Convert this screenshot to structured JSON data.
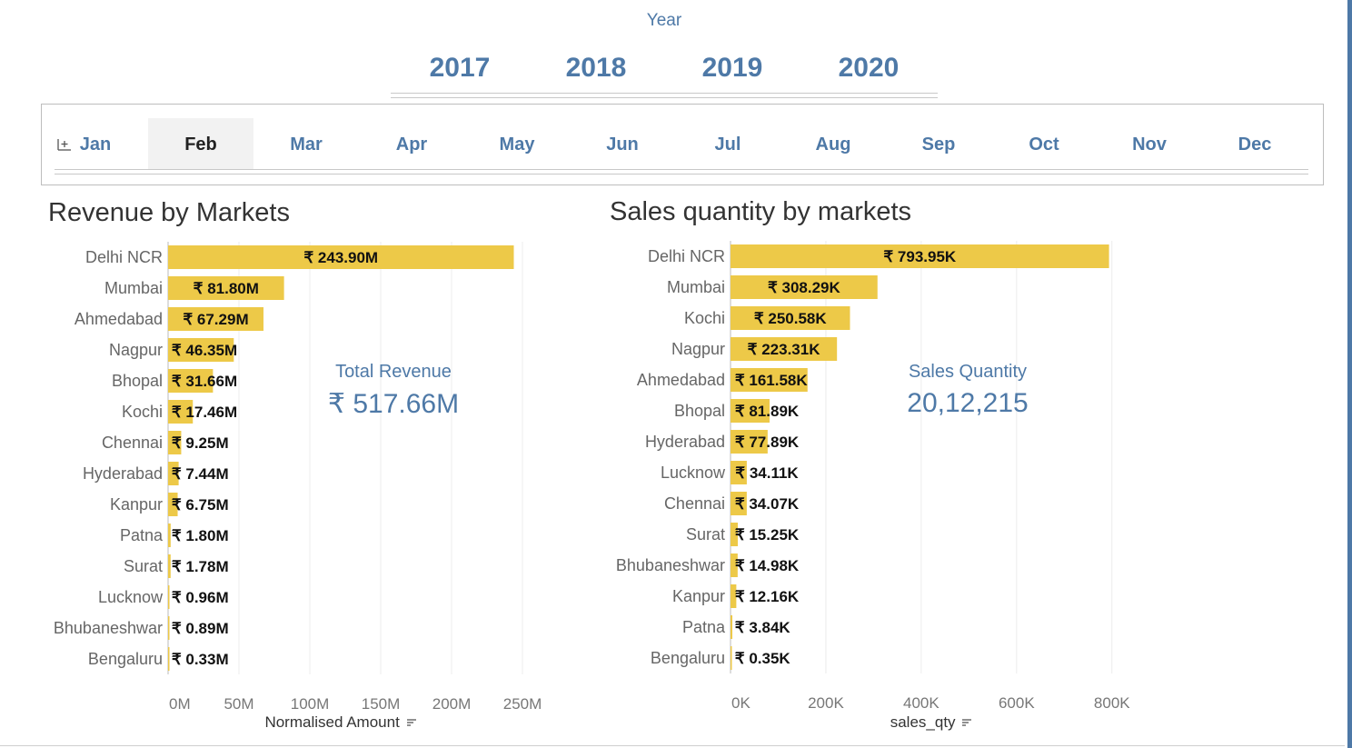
{
  "year_filter": {
    "label": "Year",
    "years": [
      "2017",
      "2018",
      "2019",
      "2020"
    ]
  },
  "month_filter": {
    "months": [
      "Jan",
      "Feb",
      "Mar",
      "Apr",
      "May",
      "Jun",
      "Jul",
      "Aug",
      "Sep",
      "Oct",
      "Nov",
      "Dec"
    ],
    "selected": "Feb",
    "expand_icon": "plus-box-icon"
  },
  "revenue_panel": {
    "title": "Revenue by Markets",
    "kpi_label": "Total Revenue",
    "kpi_value": "₹ 517.66M",
    "axis_title": "Normalised Amount",
    "sort_icon": "sort-descending-icon"
  },
  "sales_panel": {
    "title": "Sales quantity by markets",
    "kpi_label": "Sales Quantity",
    "kpi_value": "20,12,215",
    "axis_title": "sales_qty",
    "sort_icon": "sort-descending-icon"
  },
  "chart_data": [
    {
      "type": "bar",
      "orientation": "horizontal",
      "title": "Revenue by Markets",
      "xlabel": "Normalised Amount",
      "xlim": [
        0,
        250000000
      ],
      "grid": true,
      "bar_color": "#edc948",
      "tick_labels": [
        "0M",
        "50M",
        "100M",
        "150M",
        "200M",
        "250M"
      ],
      "tick_values": [
        0,
        50000000,
        100000000,
        150000000,
        200000000,
        250000000
      ],
      "categories": [
        "Delhi NCR",
        "Mumbai",
        "Ahmedabad",
        "Nagpur",
        "Bhopal",
        "Kochi",
        "Chennai",
        "Hyderabad",
        "Kanpur",
        "Patna",
        "Surat",
        "Lucknow",
        "Bhubaneshwar",
        "Bengaluru"
      ],
      "values": [
        243900000,
        81800000,
        67290000,
        46350000,
        31660000,
        17460000,
        9250000,
        7440000,
        6750000,
        1800000,
        1780000,
        960000,
        890000,
        330000
      ],
      "labels": [
        "₹ 243.90M",
        "₹ 81.80M",
        "₹ 67.29M",
        "₹ 46.35M",
        "₹ 31.66M",
        "₹ 17.46M",
        "₹ 9.25M",
        "₹ 7.44M",
        "₹ 6.75M",
        "₹ 1.80M",
        "₹ 1.78M",
        "₹ 0.96M",
        "₹ 0.89M",
        "₹ 0.33M"
      ]
    },
    {
      "type": "bar",
      "orientation": "horizontal",
      "title": "Sales quantity by markets",
      "xlabel": "sales_qty",
      "xlim": [
        0,
        850000
      ],
      "grid": true,
      "bar_color": "#edc948",
      "tick_labels": [
        "0K",
        "200K",
        "400K",
        "600K",
        "800K"
      ],
      "tick_values": [
        0,
        200000,
        400000,
        600000,
        800000
      ],
      "categories": [
        "Delhi NCR",
        "Mumbai",
        "Kochi",
        "Nagpur",
        "Ahmedabad",
        "Bhopal",
        "Hyderabad",
        "Lucknow",
        "Chennai",
        "Surat",
        "Bhubaneshwar",
        "Kanpur",
        "Patna",
        "Bengaluru"
      ],
      "values": [
        793950,
        308290,
        250580,
        223310,
        161580,
        81890,
        77890,
        34110,
        34070,
        15250,
        14980,
        12160,
        3840,
        350
      ],
      "labels": [
        "₹ 793.95K",
        "₹ 308.29K",
        "₹ 250.58K",
        "₹ 223.31K",
        "₹ 161.58K",
        "₹ 81.89K",
        "₹ 77.89K",
        "₹ 34.11K",
        "₹ 34.07K",
        "₹ 15.25K",
        "₹ 14.98K",
        "₹ 12.16K",
        "₹ 3.84K",
        "₹ 0.35K"
      ]
    }
  ]
}
